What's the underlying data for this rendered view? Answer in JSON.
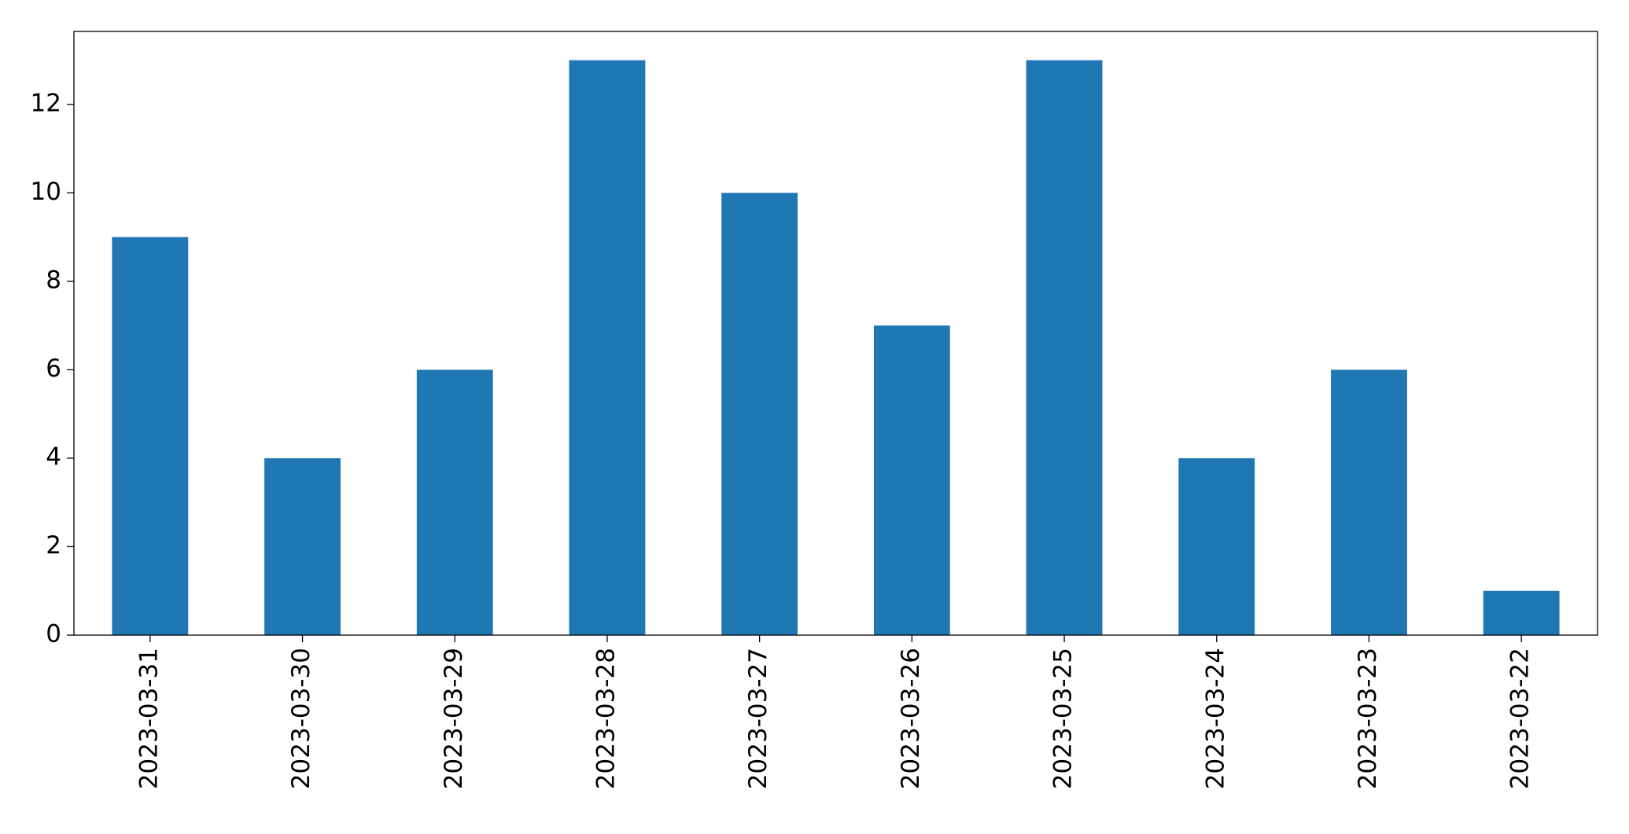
{
  "chart_data": {
    "type": "bar",
    "categories": [
      "2023-03-31",
      "2023-03-30",
      "2023-03-29",
      "2023-03-28",
      "2023-03-27",
      "2023-03-26",
      "2023-03-25",
      "2023-03-24",
      "2023-03-23",
      "2023-03-22"
    ],
    "values": [
      9,
      4,
      6,
      13,
      10,
      7,
      13,
      4,
      6,
      1
    ],
    "color": "#1f77b4",
    "ylim": [
      0,
      13.65
    ],
    "yticks": [
      0,
      2,
      4,
      6,
      8,
      10,
      12
    ],
    "grid": false
  }
}
